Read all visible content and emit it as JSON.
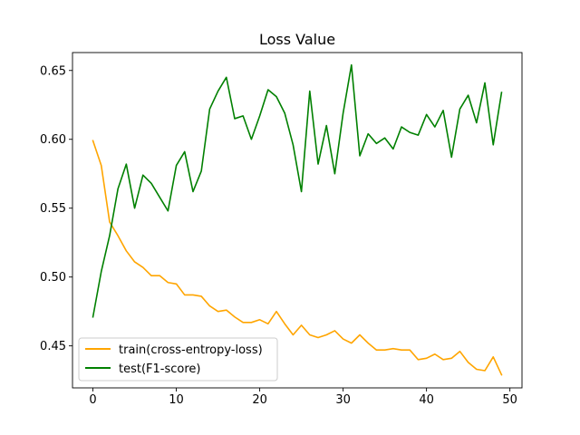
{
  "chart_data": {
    "type": "line",
    "title": "Loss Value",
    "xlabel": "",
    "ylabel": "",
    "xlim": [
      -2.45,
      51.45
    ],
    "ylim": [
      0.4195,
      0.663
    ],
    "x_ticks": [
      0,
      10,
      20,
      30,
      40,
      50
    ],
    "y_ticks": [
      0.45,
      0.5,
      0.55,
      0.6,
      0.65
    ],
    "x_tick_labels": [
      "0",
      "10",
      "20",
      "30",
      "40",
      "50"
    ],
    "y_tick_labels": [
      "0.45",
      "0.50",
      "0.55",
      "0.60",
      "0.65"
    ],
    "grid": false,
    "legend_position": "lower-left",
    "x": [
      0,
      1,
      2,
      3,
      4,
      5,
      6,
      7,
      8,
      9,
      10,
      11,
      12,
      13,
      14,
      15,
      16,
      17,
      18,
      19,
      20,
      21,
      22,
      23,
      24,
      25,
      26,
      27,
      28,
      29,
      30,
      31,
      32,
      33,
      34,
      35,
      36,
      37,
      38,
      39,
      40,
      41,
      42,
      43,
      44,
      45,
      46,
      47,
      48,
      49
    ],
    "series": [
      {
        "name": "train(cross-entropy-loss)",
        "color": "#ffa500",
        "values": [
          0.599,
          0.581,
          0.54,
          0.53,
          0.519,
          0.511,
          0.507,
          0.501,
          0.501,
          0.496,
          0.495,
          0.487,
          0.487,
          0.486,
          0.479,
          0.475,
          0.476,
          0.471,
          0.467,
          0.467,
          0.469,
          0.466,
          0.475,
          0.466,
          0.458,
          0.465,
          0.458,
          0.456,
          0.458,
          0.461,
          0.455,
          0.452,
          0.458,
          0.452,
          0.447,
          0.447,
          0.448,
          0.447,
          0.447,
          0.44,
          0.441,
          0.444,
          0.44,
          0.441,
          0.446,
          0.438,
          0.433,
          0.432,
          0.442,
          0.429
        ]
      },
      {
        "name": "test(F1-score)",
        "color": "#008000",
        "values": [
          0.471,
          0.504,
          0.53,
          0.564,
          0.582,
          0.55,
          0.574,
          0.568,
          0.558,
          0.548,
          0.581,
          0.591,
          0.562,
          0.577,
          0.622,
          0.635,
          0.645,
          0.615,
          0.617,
          0.6,
          0.617,
          0.636,
          0.631,
          0.619,
          0.596,
          0.562,
          0.635,
          0.582,
          0.61,
          0.575,
          0.619,
          0.654,
          0.588,
          0.604,
          0.597,
          0.601,
          0.593,
          0.609,
          0.605,
          0.603,
          0.618,
          0.609,
          0.621,
          0.587,
          0.622,
          0.632,
          0.612,
          0.641,
          0.596,
          0.634
        ]
      }
    ]
  }
}
